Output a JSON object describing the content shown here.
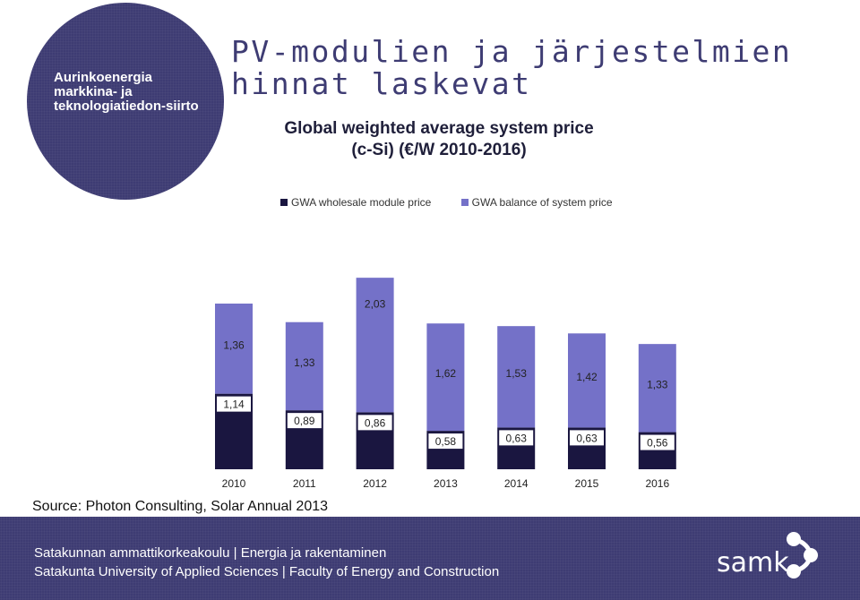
{
  "sidebar": {
    "topic": "Aurinkoenergia markkina- ja teknologiatiedon-siirto"
  },
  "header": {
    "title": "PV-modulien ja järjestelmien hinnat laskevat",
    "subtitle_line1": "Global weighted average system price",
    "subtitle_line2": "(c-Si) (€/W 2010-2016)"
  },
  "legend": [
    "GWA wholesale module price",
    "GWA balance of system price"
  ],
  "colors": {
    "module": "#1a1640",
    "bos": "#7471c8",
    "brand": "#3e3c73"
  },
  "chart_data": {
    "type": "bar",
    "stacked": true,
    "categories": [
      "2010",
      "2011",
      "2012",
      "2013",
      "2014",
      "2015",
      "2016"
    ],
    "series": [
      {
        "name": "GWA wholesale module price",
        "values": [
          1.14,
          0.89,
          0.86,
          0.58,
          0.63,
          0.63,
          0.56
        ],
        "labels": [
          "1,14",
          "0,89",
          "0,86",
          "0,58",
          "0,63",
          "0,63",
          "0,56"
        ]
      },
      {
        "name": "GWA balance of system price",
        "values": [
          1.36,
          1.33,
          2.03,
          1.62,
          1.53,
          1.42,
          1.33
        ],
        "labels": [
          "1,36",
          "1,33",
          "2,03",
          "1,62",
          "1,53",
          "1,42",
          "1,33"
        ]
      }
    ],
    "ylim": [
      0,
      3.0
    ],
    "grid": false,
    "legend_position": "top"
  },
  "source": "Source: Photon Consulting, Solar Annual 2013",
  "footer": {
    "line1": "Satakunnan ammattikorkeakoulu  |  Energia ja rakentaminen",
    "line2": "Satakunta University of Applied Sciences  |  Faculty of Energy and Construction",
    "brand": "samk",
    "logo_icon": "samk-dots-logo"
  }
}
